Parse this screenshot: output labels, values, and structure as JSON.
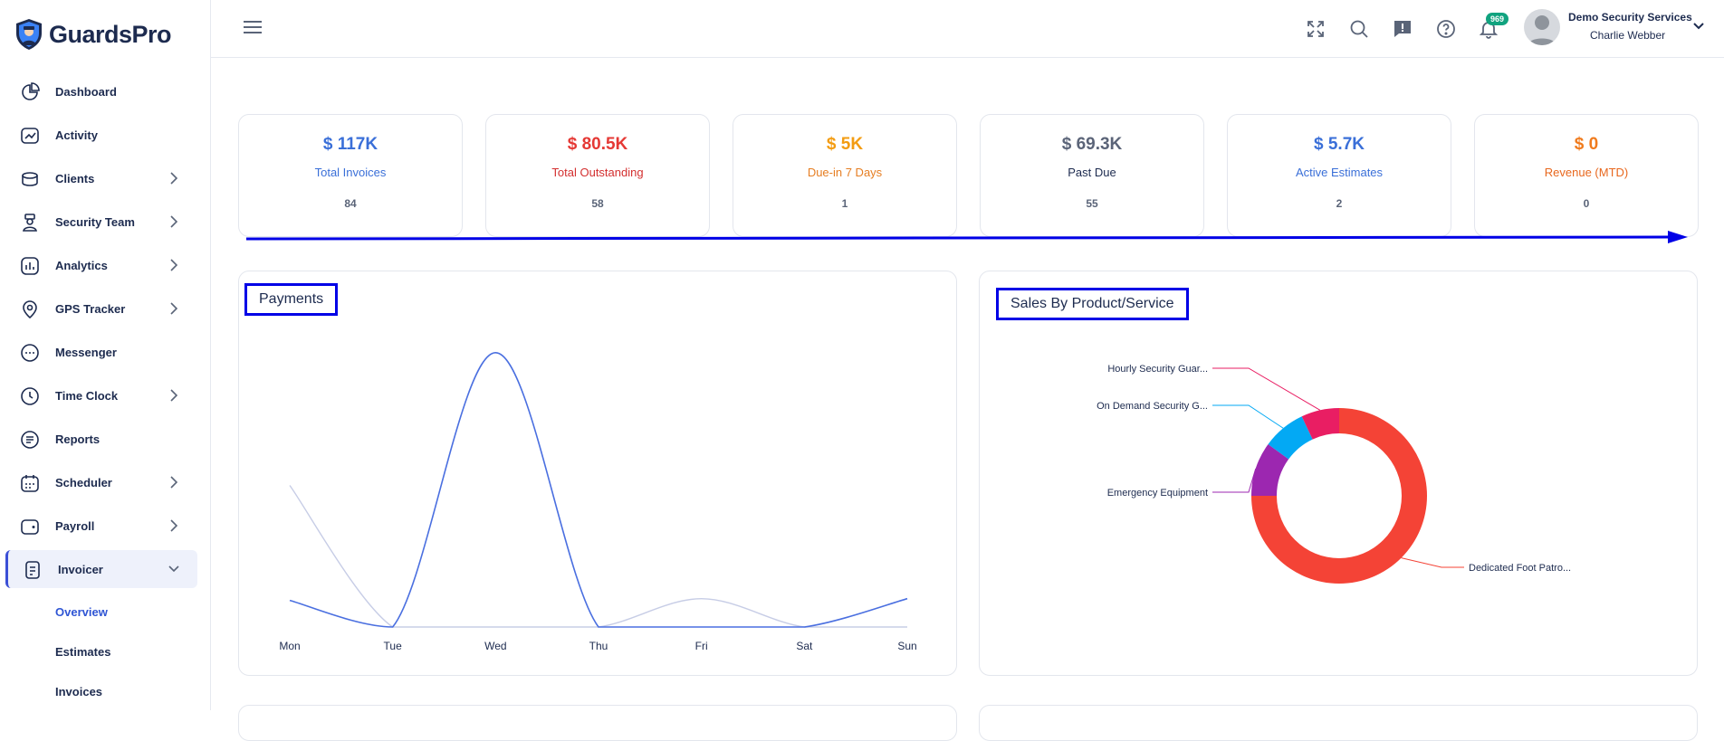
{
  "brand": {
    "name": "GuardsPro"
  },
  "sidebar": {
    "items": [
      {
        "label": "Dashboard",
        "icon": "pie-chart-icon",
        "chevron": false
      },
      {
        "label": "Activity",
        "icon": "activity-icon",
        "chevron": false
      },
      {
        "label": "Clients",
        "icon": "clients-icon",
        "chevron": true
      },
      {
        "label": "Security Team",
        "icon": "security-guard-icon",
        "chevron": true
      },
      {
        "label": "Analytics",
        "icon": "analytics-icon",
        "chevron": true
      },
      {
        "label": "GPS Tracker",
        "icon": "map-pin-icon",
        "chevron": true
      },
      {
        "label": "Messenger",
        "icon": "chat-bubble-icon",
        "chevron": false
      },
      {
        "label": "Time Clock",
        "icon": "clock-icon",
        "chevron": true
      },
      {
        "label": "Reports",
        "icon": "report-icon",
        "chevron": false
      },
      {
        "label": "Scheduler",
        "icon": "calendar-icon",
        "chevron": true
      },
      {
        "label": "Payroll",
        "icon": "wallet-icon",
        "chevron": true
      },
      {
        "label": "Invoicer",
        "icon": "invoice-icon",
        "chevron": true,
        "active": true
      }
    ],
    "subitems": [
      {
        "label": "Overview",
        "current": true
      },
      {
        "label": "Estimates",
        "current": false
      },
      {
        "label": "Invoices",
        "current": false
      }
    ]
  },
  "topbar": {
    "notification_count": "969",
    "company": "Demo Security Services",
    "user": "Charlie Webber"
  },
  "stats": [
    {
      "value": "$ 117K",
      "label": "Total Invoices",
      "count": "84",
      "color": "#3a6fd8"
    },
    {
      "value": "$ 80.5K",
      "label": "Total Outstanding",
      "count": "58",
      "color": "#e53935"
    },
    {
      "value": "$ 5K",
      "label": "Due-in 7 Days",
      "count": "1",
      "color": "#f39c12"
    },
    {
      "value": "$ 69.3K",
      "label": "Past Due",
      "count": "55",
      "color": "#5b6478"
    },
    {
      "value": "$ 5.7K",
      "label": "Active Estimates",
      "count": "2",
      "color": "#3a6fd8"
    },
    {
      "value": "$ 0",
      "label": "Revenue (MTD)",
      "count": "0",
      "color": "#f07b1d"
    }
  ],
  "stat_label_colors": [
    "#3a6fd8",
    "#d32f2f",
    "#e67e22",
    "#1d2b4f",
    "#3a6fd8",
    "#e8671d"
  ],
  "panels": {
    "payments_title": "Payments",
    "sales_title": "Sales By Product/Service"
  },
  "chart_data": [
    {
      "type": "line",
      "title": "Payments",
      "categories": [
        "Mon",
        "Tue",
        "Wed",
        "Thu",
        "Fri",
        "Sat",
        "Sun"
      ],
      "series": [
        {
          "values": [
            30,
            0,
            310,
            0,
            0,
            0,
            32
          ],
          "color": "#4a6fe0"
        },
        {
          "values": [
            160,
            0,
            0,
            0,
            32,
            0,
            0
          ],
          "color": "#c7cde6"
        }
      ],
      "ylim": [
        0,
        320
      ],
      "grid": false
    },
    {
      "type": "pie",
      "title": "Sales By Product/Service",
      "donut": true,
      "labels": [
        "Dedicated Foot Patro...",
        "Emergency Equipment",
        "On Demand Security G...",
        "Hourly Security Guar..."
      ],
      "values": [
        75,
        10,
        8,
        7
      ],
      "colors": [
        "#f44336",
        "#9c27b0",
        "#03a9f4",
        "#e91e63"
      ]
    }
  ]
}
